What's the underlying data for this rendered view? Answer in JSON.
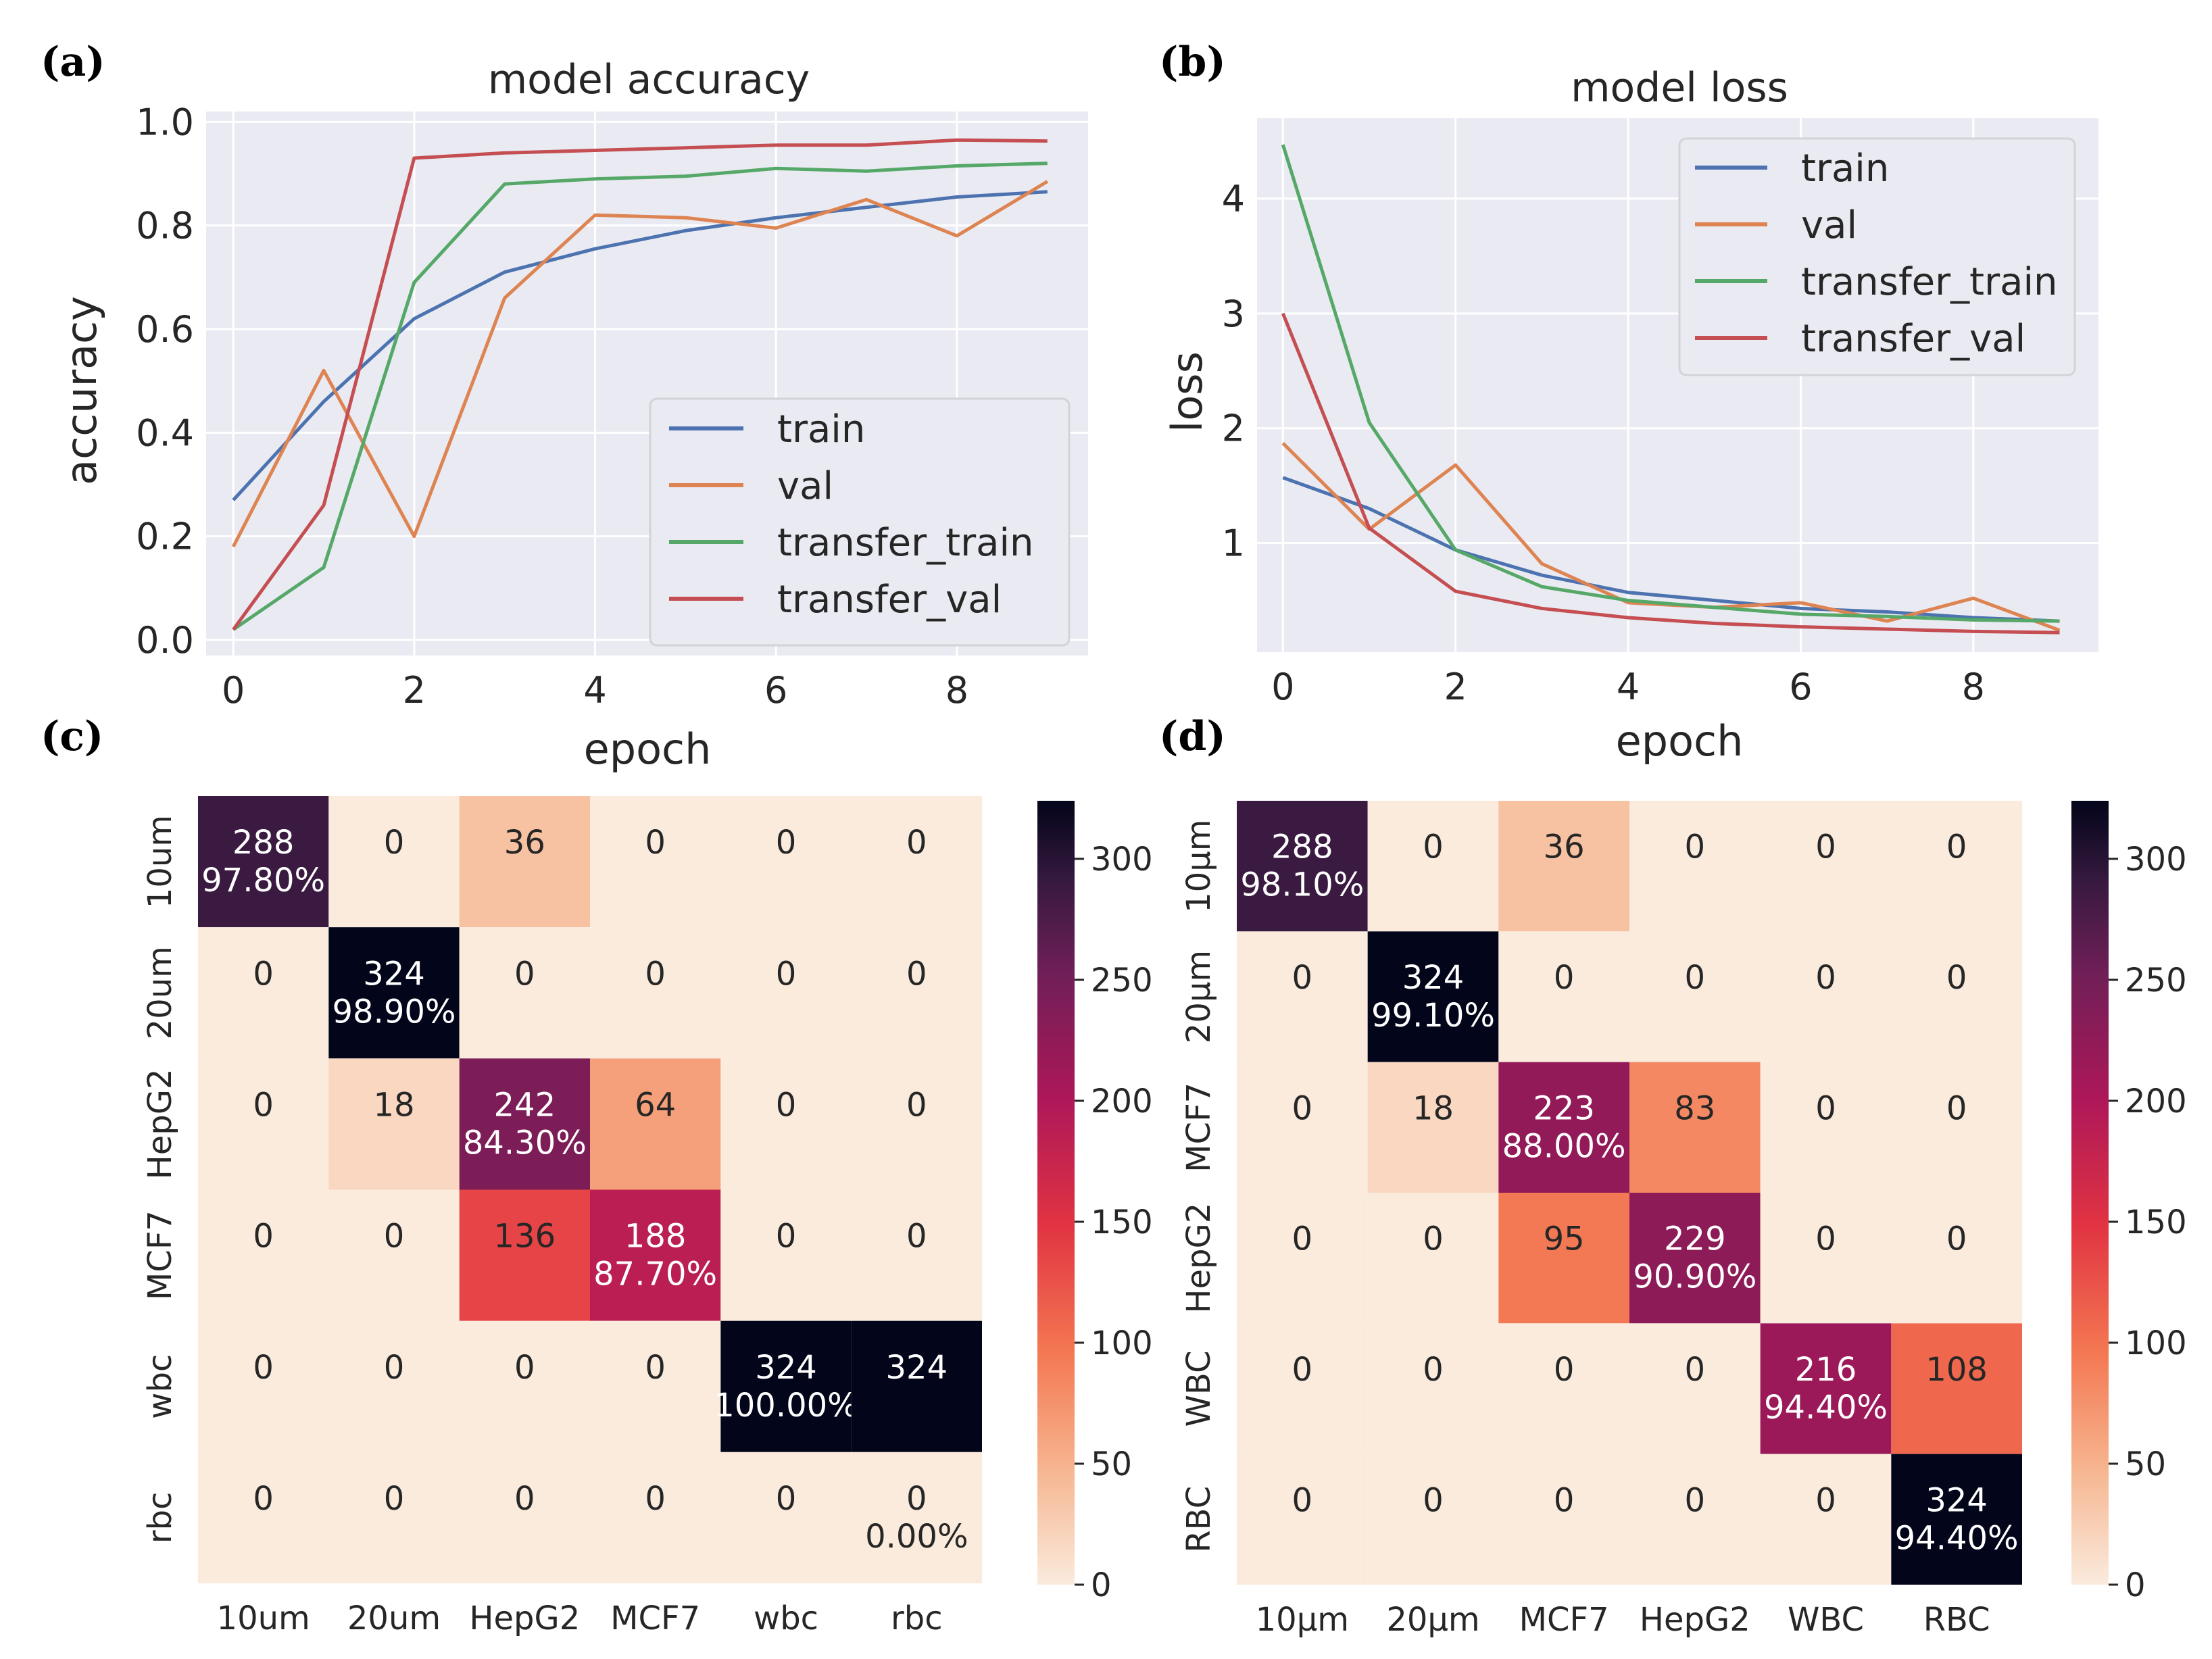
{
  "colors": {
    "train": "#4c72b0",
    "val": "#dd8452",
    "transfer_train": "#55a868",
    "transfer_val": "#c44e52",
    "plot_bg": "#eaeaf2",
    "heat_low": "#faebdd",
    "heat_high": "#03051a"
  },
  "chart_data": [
    {
      "type": "line",
      "panel_label": "(a)",
      "title": "model accuracy",
      "xlabel": "epoch",
      "ylabel": "accuracy",
      "xlim": [
        -0.3,
        9.45
      ],
      "ylim": [
        -0.03,
        1.02
      ],
      "xticks": [
        0,
        2,
        4,
        6,
        8
      ],
      "yticks": [
        0.0,
        0.2,
        0.4,
        0.6,
        0.8,
        1.0
      ],
      "ytick_labels": [
        "0.0",
        "0.2",
        "0.4",
        "0.6",
        "0.8",
        "1.0"
      ],
      "legend_position": "lower-right",
      "x": [
        0,
        1,
        2,
        3,
        4,
        5,
        6,
        7,
        8,
        9
      ],
      "series": [
        {
          "name": "train",
          "values": [
            0.27,
            0.46,
            0.62,
            0.71,
            0.755,
            0.79,
            0.815,
            0.835,
            0.855,
            0.865
          ]
        },
        {
          "name": "val",
          "values": [
            0.18,
            0.52,
            0.2,
            0.66,
            0.82,
            0.815,
            0.795,
            0.85,
            0.78,
            0.885
          ]
        },
        {
          "name": "transfer_train",
          "values": [
            0.02,
            0.14,
            0.69,
            0.88,
            0.89,
            0.895,
            0.91,
            0.905,
            0.915,
            0.92
          ]
        },
        {
          "name": "transfer_val",
          "values": [
            0.02,
            0.26,
            0.93,
            0.94,
            0.945,
            0.95,
            0.955,
            0.955,
            0.965,
            0.963
          ]
        }
      ]
    },
    {
      "type": "line",
      "panel_label": "(b)",
      "title": "model loss",
      "xlabel": "epoch",
      "ylabel": "loss",
      "xlim": [
        -0.3,
        9.45
      ],
      "ylim": [
        0.05,
        4.7
      ],
      "xticks": [
        0,
        2,
        4,
        6,
        8
      ],
      "yticks": [
        1,
        2,
        3,
        4
      ],
      "ytick_labels": [
        "1",
        "2",
        "3",
        "4"
      ],
      "legend_position": "top-right",
      "x": [
        0,
        1,
        2,
        3,
        4,
        5,
        6,
        7,
        8,
        9
      ],
      "series": [
        {
          "name": "train",
          "values": [
            1.57,
            1.3,
            0.94,
            0.72,
            0.57,
            0.5,
            0.43,
            0.4,
            0.35,
            0.32
          ]
        },
        {
          "name": "val",
          "values": [
            1.87,
            1.12,
            1.68,
            0.82,
            0.48,
            0.44,
            0.48,
            0.32,
            0.52,
            0.24
          ]
        },
        {
          "name": "transfer_train",
          "values": [
            4.47,
            2.05,
            0.94,
            0.62,
            0.5,
            0.44,
            0.38,
            0.36,
            0.33,
            0.32
          ]
        },
        {
          "name": "transfer_val",
          "values": [
            3.0,
            1.13,
            0.58,
            0.43,
            0.35,
            0.3,
            0.27,
            0.25,
            0.23,
            0.22
          ]
        }
      ]
    },
    {
      "type": "heatmap",
      "panel_label": "(c)",
      "x_categories": [
        "10um",
        "20um",
        "HepG2",
        "MCF7",
        "wbc",
        "rbc"
      ],
      "y_categories": [
        "10um",
        "20um",
        "HepG2",
        "MCF7",
        "wbc",
        "rbc"
      ],
      "values": [
        [
          288,
          0,
          36,
          0,
          0,
          0
        ],
        [
          0,
          324,
          0,
          0,
          0,
          0
        ],
        [
          0,
          18,
          242,
          64,
          0,
          0
        ],
        [
          0,
          0,
          136,
          188,
          0,
          0
        ],
        [
          0,
          0,
          0,
          0,
          324,
          324
        ],
        [
          0,
          0,
          0,
          0,
          0,
          0
        ]
      ],
      "diagonal_percent": [
        "97.80%",
        "98.90%",
        "84.30%",
        "87.70%",
        "100.00%",
        "0.00%"
      ],
      "colorbar": {
        "min": 0,
        "max": 324,
        "ticks": [
          0,
          50,
          100,
          150,
          200,
          250,
          300
        ]
      }
    },
    {
      "type": "heatmap",
      "panel_label": "(d)",
      "x_categories": [
        "10μm",
        "20μm",
        "MCF7",
        "HepG2",
        "WBC",
        "RBC"
      ],
      "y_categories": [
        "10μm",
        "20μm",
        "MCF7",
        "HepG2",
        "WBC",
        "RBC"
      ],
      "values": [
        [
          288,
          0,
          36,
          0,
          0,
          0
        ],
        [
          0,
          324,
          0,
          0,
          0,
          0
        ],
        [
          0,
          18,
          223,
          83,
          0,
          0
        ],
        [
          0,
          0,
          95,
          229,
          0,
          0
        ],
        [
          0,
          0,
          0,
          0,
          216,
          108
        ],
        [
          0,
          0,
          0,
          0,
          0,
          324
        ]
      ],
      "diagonal_percent": [
        "98.10%",
        "99.10%",
        "88.00%",
        "90.90%",
        "94.40%",
        "94.40%"
      ],
      "colorbar": {
        "min": 0,
        "max": 324,
        "ticks": [
          0,
          50,
          100,
          150,
          200,
          250,
          300
        ]
      }
    }
  ]
}
